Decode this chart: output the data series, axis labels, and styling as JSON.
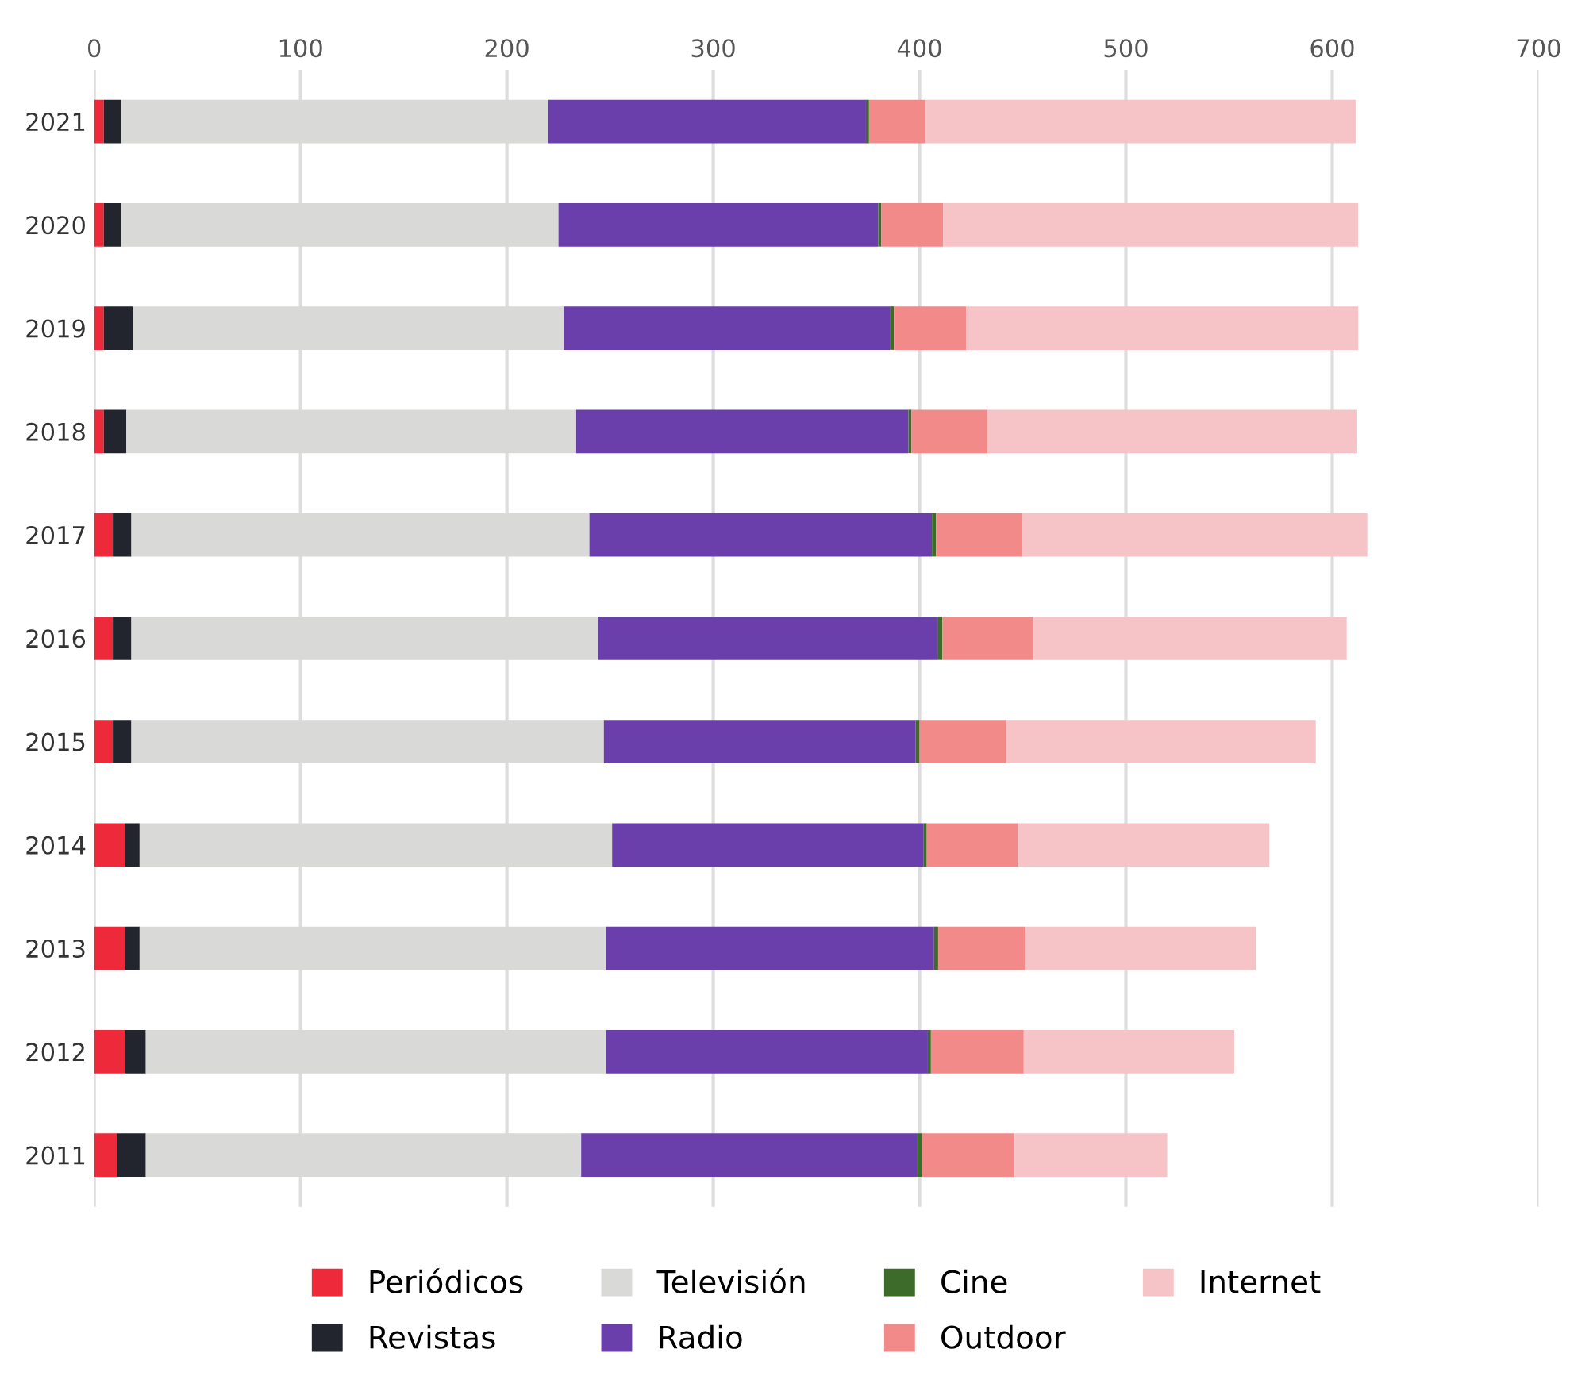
{
  "chart_data": {
    "type": "bar",
    "orientation": "horizontal",
    "stacked": true,
    "categories": [
      "2021",
      "2020",
      "2019",
      "2018",
      "2017",
      "2016",
      "2015",
      "2014",
      "2013",
      "2012",
      "2011"
    ],
    "series": [
      {
        "name": "Periódicos",
        "color": "#ee2a3a",
        "values": [
          4.6,
          4.6,
          4.6,
          4.6,
          9,
          9,
          9,
          15,
          15,
          15,
          11
        ]
      },
      {
        "name": "Revistas",
        "color": "#22252e",
        "values": [
          8.4,
          8.4,
          14,
          11,
          9,
          9,
          9,
          7,
          7,
          10,
          14
        ]
      },
      {
        "name": "Televisión",
        "color": "#d9d9d7",
        "values": [
          207,
          212,
          209,
          218,
          222,
          226,
          229,
          229,
          226,
          223,
          211
        ]
      },
      {
        "name": "Radio",
        "color": "#6a3fab",
        "values": [
          154,
          155,
          158,
          161,
          166,
          165,
          151,
          151,
          159,
          156,
          163
        ]
      },
      {
        "name": "Cine",
        "color": "#3d6b2a",
        "values": [
          1.5,
          1.5,
          2,
          1.5,
          2,
          2,
          2,
          1.5,
          2,
          1.5,
          2
        ]
      },
      {
        "name": "Outdoor",
        "color": "#f28a8a",
        "values": [
          27,
          30,
          35,
          37,
          42,
          44,
          42,
          44,
          42,
          45,
          45
        ]
      },
      {
        "name": "Internet",
        "color": "#f6c3c6",
        "values": [
          209,
          201,
          190,
          179,
          167,
          152,
          150,
          122,
          112,
          102,
          74
        ]
      }
    ],
    "xlim": [
      0,
      700
    ],
    "xticks": [
      0,
      100,
      200,
      300,
      400,
      500,
      600,
      700
    ],
    "grid": "x",
    "legend": "bottom"
  }
}
